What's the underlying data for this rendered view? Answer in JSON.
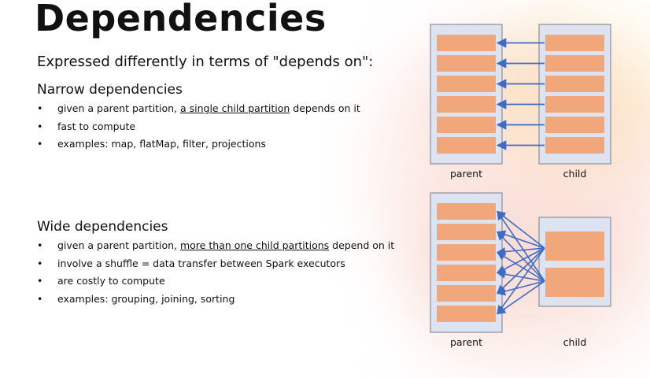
{
  "title": "Dependencies",
  "subtitle": "Expressed differently in terms of \"depends on\":",
  "narrow": {
    "heading": "Narrow dependencies",
    "bullets": [
      {
        "before": "given a parent partition, ",
        "underlined": "a single child partition",
        "after": " depends on it"
      },
      {
        "before": "fast to compute",
        "underlined": "",
        "after": ""
      },
      {
        "before": "examples: map, flatMap, filter, projections",
        "underlined": "",
        "after": ""
      }
    ],
    "diagram": {
      "parent_label": "parent",
      "child_label": "child",
      "parent_partitions": 6,
      "child_partitions": 6
    }
  },
  "wide": {
    "heading": "Wide dependencies",
    "bullets": [
      {
        "before": "given a parent partition, ",
        "underlined": "more than one child partitions",
        "after": " depend on it"
      },
      {
        "before": "involve a shuffle = data transfer between Spark executors",
        "underlined": "",
        "after": ""
      },
      {
        "before": "are costly to compute",
        "underlined": "",
        "after": ""
      },
      {
        "before": "examples: grouping, joining, sorting",
        "underlined": "",
        "after": ""
      }
    ],
    "diagram": {
      "parent_label": "parent",
      "child_label": "child",
      "parent_partitions": 6,
      "child_partitions": 2
    }
  },
  "colors": {
    "partition_fill": "#f2a77a",
    "container_fill": "#dde3f1",
    "container_stroke": "#8a8f99",
    "arrow": "#3f6bc4"
  }
}
